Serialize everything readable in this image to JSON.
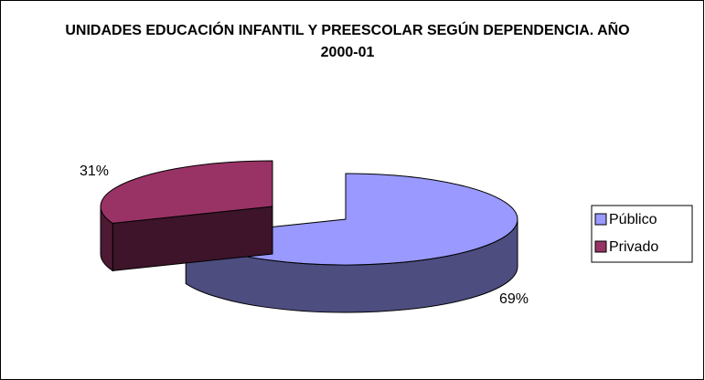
{
  "chart_data": {
    "type": "pie",
    "title": "UNIDADES EDUCACIÓN INFANTIL Y PREESCOLAR SEGÚN DEPENDENCIA. AÑO 2000-01",
    "categories": [
      "Público",
      "Privado"
    ],
    "values": [
      69,
      31
    ],
    "value_labels": [
      "69%",
      "31%"
    ],
    "colors": [
      "#9999ff",
      "#993366"
    ],
    "legend": "right"
  }
}
